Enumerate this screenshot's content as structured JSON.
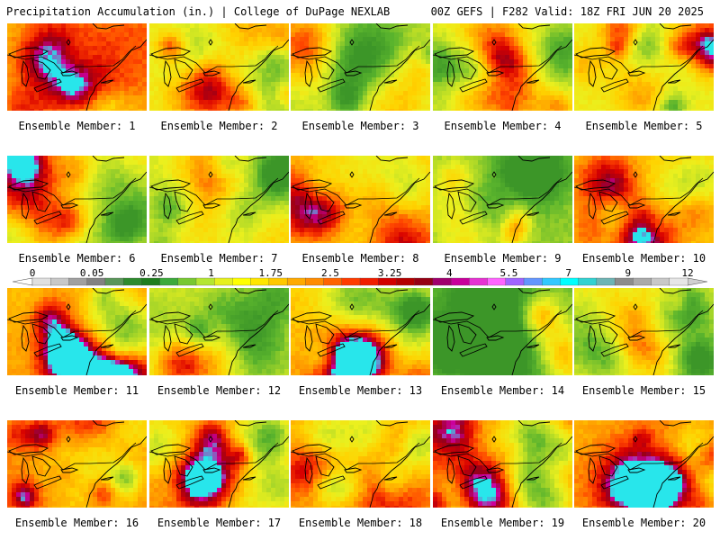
{
  "header": {
    "title_left": "Precipitation Accumulation (in.) | College of DuPage NEXLAB",
    "title_right": "00Z GEFS | F282 Valid: 18Z FRI JUN 20 2025"
  },
  "panels": [
    {
      "label": "Ensemble Member: 1",
      "member": 1
    },
    {
      "label": "Ensemble Member: 2",
      "member": 2
    },
    {
      "label": "Ensemble Member: 3",
      "member": 3
    },
    {
      "label": "Ensemble Member: 4",
      "member": 4
    },
    {
      "label": "Ensemble Member: 5",
      "member": 5
    },
    {
      "label": "Ensemble Member: 6",
      "member": 6
    },
    {
      "label": "Ensemble Member: 7",
      "member": 7
    },
    {
      "label": "Ensemble Member: 8",
      "member": 8
    },
    {
      "label": "Ensemble Member: 9",
      "member": 9
    },
    {
      "label": "Ensemble Member: 10",
      "member": 10
    },
    {
      "label": "Ensemble Member: 11",
      "member": 11
    },
    {
      "label": "Ensemble Member: 12",
      "member": 12
    },
    {
      "label": "Ensemble Member: 13",
      "member": 13
    },
    {
      "label": "Ensemble Member: 14",
      "member": 14
    },
    {
      "label": "Ensemble Member: 15",
      "member": 15
    },
    {
      "label": "Ensemble Member: 16",
      "member": 16
    },
    {
      "label": "Ensemble Member: 17",
      "member": 17
    },
    {
      "label": "Ensemble Member: 18",
      "member": 18
    },
    {
      "label": "Ensemble Member: 19",
      "member": 19
    },
    {
      "label": "Ensemble Member: 20",
      "member": 20
    }
  ],
  "colorbar": {
    "tick_labels": [
      "0",
      "0.05",
      "0.25",
      "1",
      "1.75",
      "2.5",
      "3.25",
      "4",
      "5.5",
      "7",
      "9",
      "12"
    ],
    "colors": [
      "#e0e0e0",
      "#c8c8c8",
      "#a0a0a0",
      "#828282",
      "#5a965a",
      "#2e8b2e",
      "#1e7d1e",
      "#3caa3c",
      "#78c832",
      "#b4e632",
      "#e6f01e",
      "#ffff00",
      "#ffe600",
      "#ffc800",
      "#ffaa00",
      "#ff8c00",
      "#ff6400",
      "#ff3c00",
      "#f01e00",
      "#d20000",
      "#b40000",
      "#960014",
      "#a0006e",
      "#c8009b",
      "#e632d2",
      "#ff64ff",
      "#a064ff",
      "#6496ff",
      "#32c8ff",
      "#00ffff",
      "#32d2d2",
      "#6eb4b4",
      "#8c8c8c",
      "#aaaaaa",
      "#c8c8c8",
      "#e6e6e6"
    ]
  }
}
